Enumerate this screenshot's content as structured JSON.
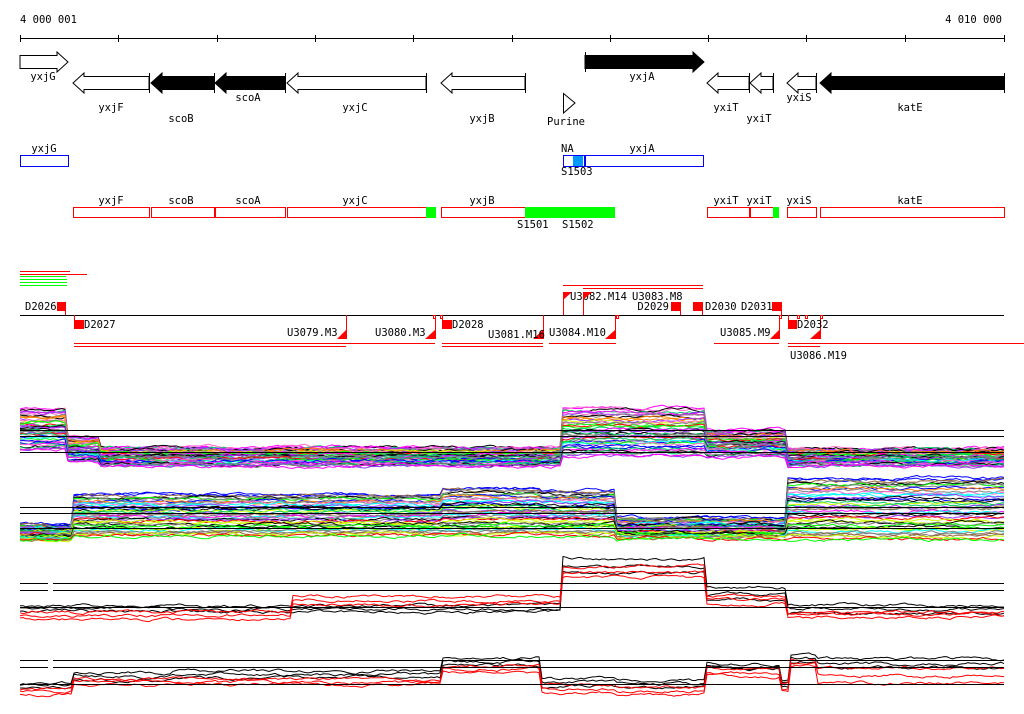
{
  "ruler": {
    "start_label": "4 000 001",
    "end_label": "4 010 000"
  },
  "genes": [
    "yxjG",
    "yxjF",
    "scoB",
    "scoA",
    "yxjC",
    "yxjB",
    "yxjA",
    "yxiT",
    "yxiT",
    "yxiS",
    "katE"
  ],
  "terminator": {
    "label": "Purine"
  },
  "blue_track": {
    "labels": [
      "yxjG",
      "NA",
      "yxjA"
    ],
    "site_label": "S1503"
  },
  "red_track": {
    "labels": [
      "yxjF",
      "scoB",
      "scoA",
      "yxjC",
      "yxjB",
      "yxiT",
      "yxiT",
      "yxiS",
      "katE"
    ],
    "site_labels": [
      "S1501",
      "S1502"
    ]
  },
  "transcripts": {
    "labels": [
      "D2026",
      "D2027",
      "U3079.M3",
      "U3080.M3",
      "D2028",
      "U3081.M16",
      "U3084.M10",
      "U3082.M14",
      "U3083.M8",
      "D2029",
      "D2030",
      "D2031",
      "U3085.M9",
      "U3086.M19",
      "D2032"
    ]
  },
  "colors": {
    "gene_outline": "#000000",
    "blue_box": "#0000ff",
    "blue_fill": "#0099ff",
    "red_box": "#ff0000",
    "green_fill": "#00ff00",
    "feature_red": "#ff0000",
    "profile_palette": [
      "#ff00ff",
      "#00ff00",
      "#ff0000",
      "#0000ff",
      "#00ffff",
      "#ff8000",
      "#808080",
      "#ccff00",
      "#000000",
      "#9933ff",
      "#ff66cc",
      "#00cc66",
      "#996633"
    ]
  }
}
